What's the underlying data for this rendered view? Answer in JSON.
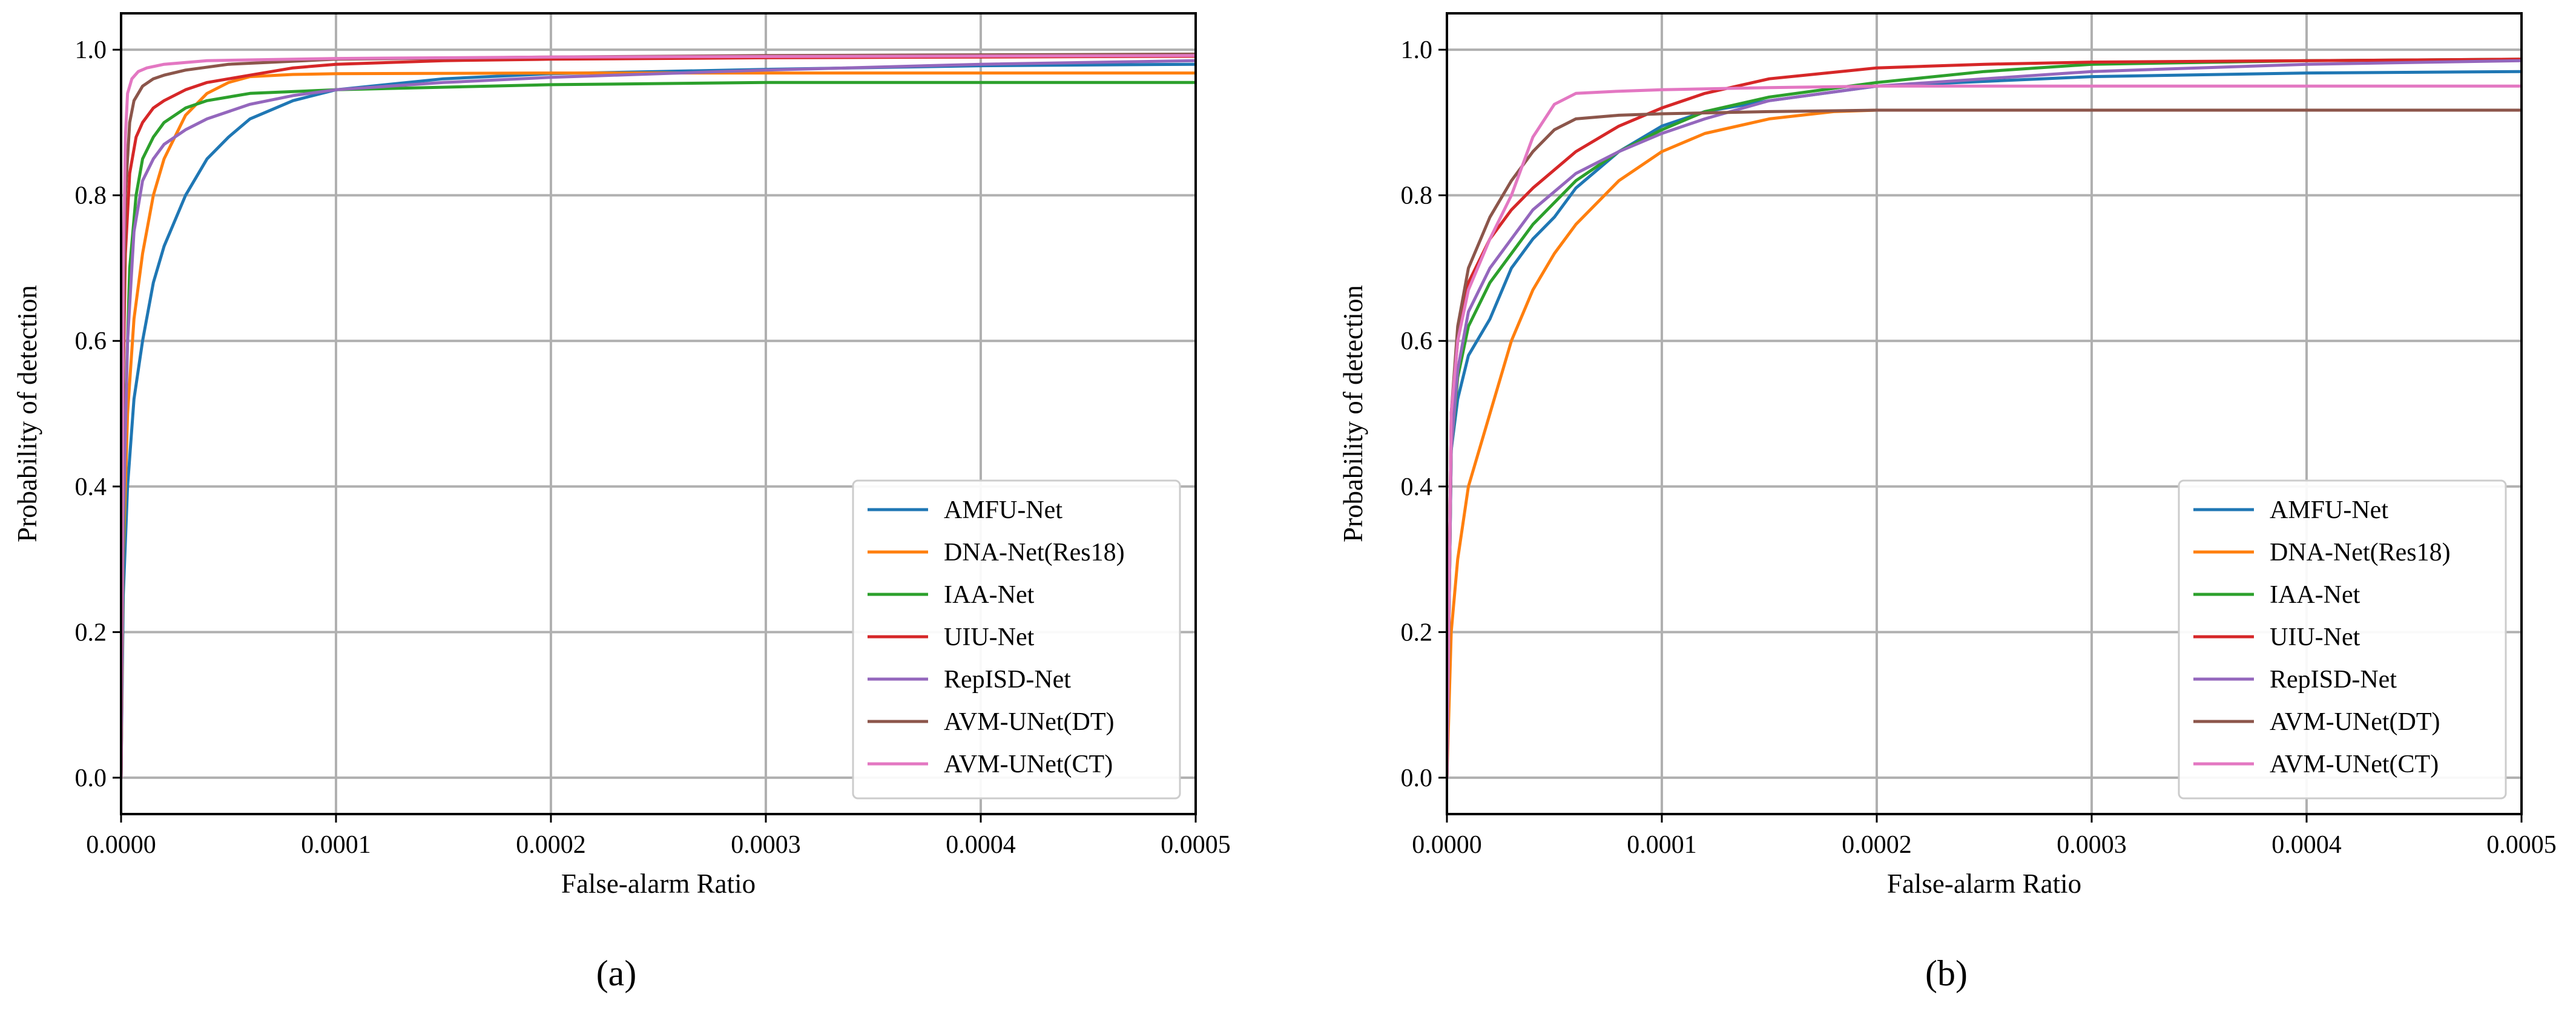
{
  "chart_data": [
    {
      "type": "line",
      "panel": "(a)",
      "xlabel": "False-alarm Ratio",
      "ylabel": "Probability of detection",
      "xlim": [
        0,
        0.0005
      ],
      "ylim": [
        -0.05,
        1.05
      ],
      "xticks": [
        "0.0000",
        "0.0001",
        "0.0002",
        "0.0003",
        "0.0004",
        "0.0005"
      ],
      "yticks": [
        "0.0",
        "0.2",
        "0.4",
        "0.6",
        "0.8",
        "1.0"
      ],
      "grid": true,
      "legend_position": "lower right",
      "series": [
        {
          "name": "AMFU-Net",
          "color": "#1f77b4",
          "x": [
            0,
            1e-06,
            3e-06,
            6e-06,
            1e-05,
            1.5e-05,
            2e-05,
            3e-05,
            4e-05,
            5e-05,
            6e-05,
            8e-05,
            0.0001,
            0.00015,
            0.0002,
            0.0003,
            0.0004,
            0.0005
          ],
          "y": [
            0,
            0.25,
            0.4,
            0.52,
            0.6,
            0.68,
            0.73,
            0.8,
            0.85,
            0.88,
            0.905,
            0.93,
            0.945,
            0.96,
            0.967,
            0.973,
            0.978,
            0.98
          ]
        },
        {
          "name": "DNA-Net(Res18)",
          "color": "#ff7f0e",
          "x": [
            0,
            1e-06,
            3e-06,
            6e-06,
            1e-05,
            1.5e-05,
            2e-05,
            3e-05,
            4e-05,
            5e-05,
            6e-05,
            8e-05,
            0.0001,
            0.0002,
            0.0003,
            0.0004,
            0.0005
          ],
          "y": [
            0,
            0.3,
            0.5,
            0.63,
            0.72,
            0.8,
            0.85,
            0.91,
            0.94,
            0.955,
            0.963,
            0.966,
            0.967,
            0.968,
            0.968,
            0.968,
            0.968
          ]
        },
        {
          "name": "IAA-Net",
          "color": "#2ca02c",
          "x": [
            0,
            1e-06,
            2e-06,
            4e-06,
            7e-06,
            1e-05,
            1.5e-05,
            2e-05,
            3e-05,
            4e-05,
            6e-05,
            0.0001,
            0.0002,
            0.0003,
            0.0004,
            0.0005
          ],
          "y": [
            0,
            0.3,
            0.5,
            0.7,
            0.8,
            0.85,
            0.88,
            0.9,
            0.92,
            0.93,
            0.94,
            0.945,
            0.952,
            0.955,
            0.955,
            0.955
          ]
        },
        {
          "name": "UIU-Net",
          "color": "#d62728",
          "x": [
            0,
            1e-06,
            2e-06,
            4e-06,
            7e-06,
            1e-05,
            1.5e-05,
            2e-05,
            3e-05,
            4e-05,
            6e-05,
            8e-05,
            0.0001,
            0.00015,
            0.0002,
            0.0003,
            0.0004,
            0.0005
          ],
          "y": [
            0,
            0.55,
            0.72,
            0.83,
            0.88,
            0.9,
            0.92,
            0.93,
            0.945,
            0.955,
            0.965,
            0.975,
            0.98,
            0.985,
            0.987,
            0.989,
            0.99,
            0.991
          ]
        },
        {
          "name": "RepISD-Net",
          "color": "#9467bd",
          "x": [
            0,
            1e-06,
            3e-06,
            6e-06,
            1e-05,
            1.5e-05,
            2e-05,
            3e-05,
            4e-05,
            6e-05,
            8e-05,
            0.0001,
            0.00015,
            0.0002,
            0.0003,
            0.0004,
            0.0005
          ],
          "y": [
            0,
            0.35,
            0.6,
            0.75,
            0.82,
            0.85,
            0.87,
            0.89,
            0.905,
            0.925,
            0.937,
            0.945,
            0.955,
            0.962,
            0.972,
            0.98,
            0.985
          ]
        },
        {
          "name": "AVM-UNet(DT)",
          "color": "#8c564b",
          "x": [
            0,
            1e-06,
            2e-06,
            4e-06,
            6e-06,
            1e-05,
            1.5e-05,
            2e-05,
            3e-05,
            5e-05,
            0.0001,
            0.0002,
            0.0003,
            0.0004,
            0.0005
          ],
          "y": [
            0,
            0.6,
            0.8,
            0.9,
            0.93,
            0.95,
            0.96,
            0.965,
            0.972,
            0.98,
            0.987,
            0.99,
            0.992,
            0.993,
            0.994
          ]
        },
        {
          "name": "AVM-UNet(CT)",
          "color": "#e377c2",
          "x": [
            0,
            1e-06,
            2e-06,
            3e-06,
            5e-06,
            8e-06,
            1.2e-05,
            2e-05,
            4e-05,
            0.0001,
            0.0002,
            0.0005
          ],
          "y": [
            0,
            0.7,
            0.88,
            0.94,
            0.96,
            0.97,
            0.975,
            0.98,
            0.985,
            0.988,
            0.99,
            0.992
          ]
        }
      ]
    },
    {
      "type": "line",
      "panel": "(b)",
      "xlabel": "False-alarm Ratio",
      "ylabel": "Probability of detection",
      "xlim": [
        0,
        0.0005
      ],
      "ylim": [
        -0.05,
        1.05
      ],
      "xticks": [
        "0.0000",
        "0.0001",
        "0.0002",
        "0.0003",
        "0.0004",
        "0.0005"
      ],
      "yticks": [
        "0.0",
        "0.2",
        "0.4",
        "0.6",
        "0.8",
        "1.0"
      ],
      "grid": true,
      "legend_position": "lower right",
      "series": [
        {
          "name": "AMFU-Net",
          "color": "#1f77b4",
          "x": [
            0,
            2e-06,
            5e-06,
            1e-05,
            2e-05,
            3e-05,
            4e-05,
            5e-05,
            6e-05,
            8e-05,
            0.0001,
            0.00012,
            0.00015,
            0.0002,
            0.0003,
            0.0004,
            0.0005
          ],
          "y": [
            0,
            0.45,
            0.52,
            0.58,
            0.63,
            0.7,
            0.74,
            0.77,
            0.81,
            0.86,
            0.895,
            0.915,
            0.93,
            0.95,
            0.963,
            0.968,
            0.97
          ]
        },
        {
          "name": "DNA-Net(Res18)",
          "color": "#ff7f0e",
          "x": [
            0,
            2e-06,
            5e-06,
            1e-05,
            2e-05,
            3e-05,
            4e-05,
            5e-05,
            6e-05,
            8e-05,
            0.0001,
            0.00012,
            0.00015,
            0.00018,
            0.0002,
            0.0003,
            0.0004,
            0.0005
          ],
          "y": [
            0,
            0.2,
            0.3,
            0.4,
            0.5,
            0.6,
            0.67,
            0.72,
            0.76,
            0.82,
            0.86,
            0.885,
            0.905,
            0.915,
            0.917,
            0.917,
            0.917,
            0.917
          ]
        },
        {
          "name": "IAA-Net",
          "color": "#2ca02c",
          "x": [
            0,
            2e-06,
            5e-06,
            1e-05,
            2e-05,
            3e-05,
            4e-05,
            6e-05,
            8e-05,
            0.0001,
            0.00012,
            0.00015,
            0.0002,
            0.00025,
            0.0003,
            0.0004,
            0.0005
          ],
          "y": [
            0,
            0.45,
            0.55,
            0.62,
            0.68,
            0.72,
            0.76,
            0.82,
            0.86,
            0.89,
            0.915,
            0.935,
            0.955,
            0.97,
            0.98,
            0.985,
            0.987
          ]
        },
        {
          "name": "UIU-Net",
          "color": "#d62728",
          "x": [
            0,
            2e-06,
            5e-06,
            1e-05,
            2e-05,
            3e-05,
            4e-05,
            6e-05,
            8e-05,
            0.0001,
            0.00012,
            0.00015,
            0.0002,
            0.00025,
            0.0003,
            0.0004,
            0.0005
          ],
          "y": [
            0,
            0.5,
            0.6,
            0.68,
            0.74,
            0.78,
            0.81,
            0.86,
            0.895,
            0.92,
            0.94,
            0.96,
            0.975,
            0.98,
            0.983,
            0.985,
            0.987
          ]
        },
        {
          "name": "RepISD-Net",
          "color": "#9467bd",
          "x": [
            0,
            2e-06,
            5e-06,
            1e-05,
            2e-05,
            3e-05,
            4e-05,
            6e-05,
            8e-05,
            0.0001,
            0.00012,
            0.00015,
            0.0002,
            0.0003,
            0.0004,
            0.0005
          ],
          "y": [
            0,
            0.45,
            0.56,
            0.64,
            0.7,
            0.74,
            0.78,
            0.83,
            0.86,
            0.885,
            0.905,
            0.93,
            0.95,
            0.97,
            0.98,
            0.985
          ]
        },
        {
          "name": "AVM-UNet(DT)",
          "color": "#8c564b",
          "x": [
            0,
            2e-06,
            5e-06,
            1e-05,
            2e-05,
            3e-05,
            4e-05,
            5e-05,
            6e-05,
            8e-05,
            0.0001,
            0.00015,
            0.0002,
            0.0003,
            0.0004,
            0.0005
          ],
          "y": [
            0,
            0.5,
            0.62,
            0.7,
            0.77,
            0.82,
            0.86,
            0.89,
            0.905,
            0.91,
            0.912,
            0.915,
            0.917,
            0.917,
            0.917,
            0.917
          ]
        },
        {
          "name": "AVM-UNet(CT)",
          "color": "#e377c2",
          "x": [
            0,
            2e-06,
            5e-06,
            1e-05,
            2e-05,
            3e-05,
            4e-05,
            5e-05,
            6e-05,
            8e-05,
            0.0001,
            0.00015,
            0.0002,
            0.0003,
            0.0004,
            0.0005
          ],
          "y": [
            0,
            0.5,
            0.6,
            0.67,
            0.74,
            0.8,
            0.88,
            0.925,
            0.94,
            0.943,
            0.945,
            0.948,
            0.95,
            0.95,
            0.95,
            0.95
          ]
        }
      ]
    }
  ]
}
